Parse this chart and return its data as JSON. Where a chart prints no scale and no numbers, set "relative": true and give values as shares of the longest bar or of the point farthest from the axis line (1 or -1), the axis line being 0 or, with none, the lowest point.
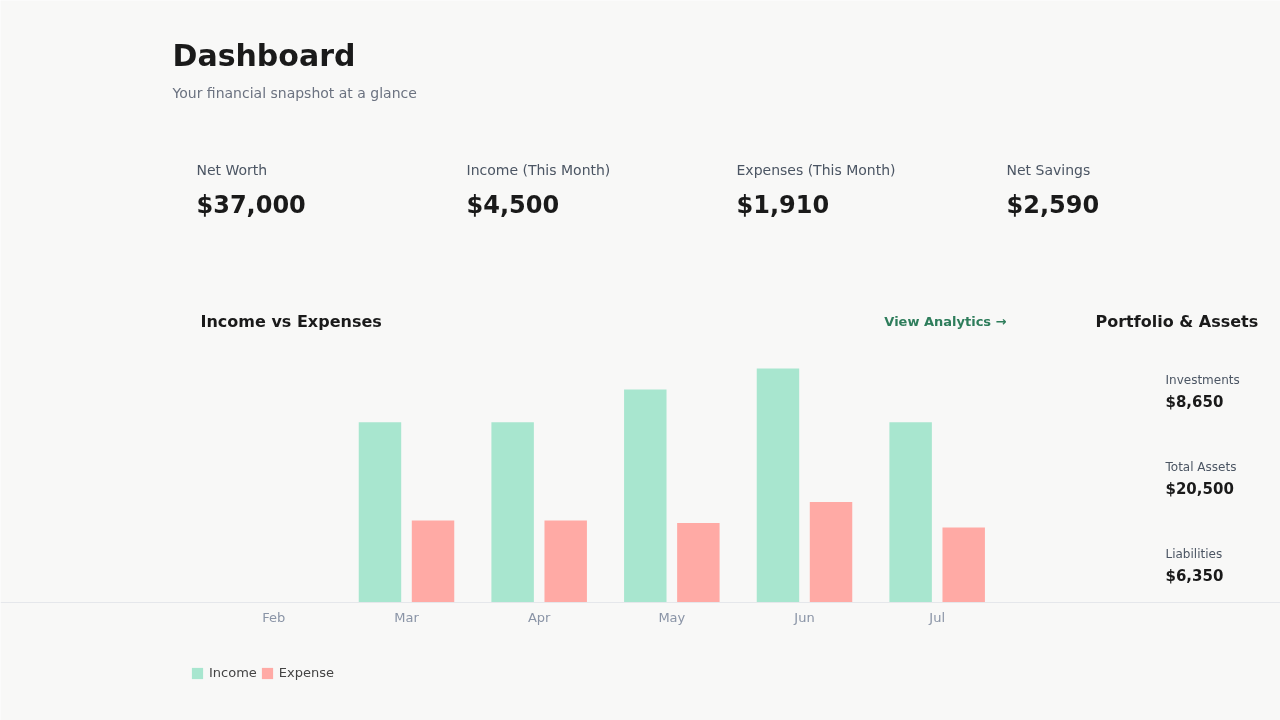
{
  "chart_data": [
    {
      "type": "other",
      "title": "Dashboard",
      "subtitle": "Your financial snapshot at a glance",
      "annotations": [
        "Net Worth",
        "$37,000",
        "Income (This Month)",
        "$4,500",
        "Expenses (This Month)",
        "$1,910",
        "Net Savings",
        "$2,590"
      ]
    },
    {
      "type": "bar",
      "title": "Income vs Expenses",
      "annotations": [
        "View Analytics →"
      ],
      "relative": true,
      "legend": "bottom left",
      "categories": [
        "Feb",
        "Mar",
        "Apr",
        "May",
        "Jun",
        "Jul"
      ],
      "series": [
        {
          "name": "Income",
          "color": "#a8e6cf",
          "values": [
            0,
            0.77,
            0.77,
            0.91,
            1,
            0.77
          ]
        },
        {
          "name": "Expense",
          "color": "#ffaaa5",
          "values": [
            0,
            0.35,
            0.35,
            0.34,
            0.43,
            0.32
          ]
        }
      ]
    },
    {
      "type": "other",
      "title": "Portfolio & Assets",
      "annotations": [
        "Investments",
        "$8,650",
        "Total Assets",
        "$20,500",
        "Liabilities",
        "$6,350"
      ]
    }
  ]
}
